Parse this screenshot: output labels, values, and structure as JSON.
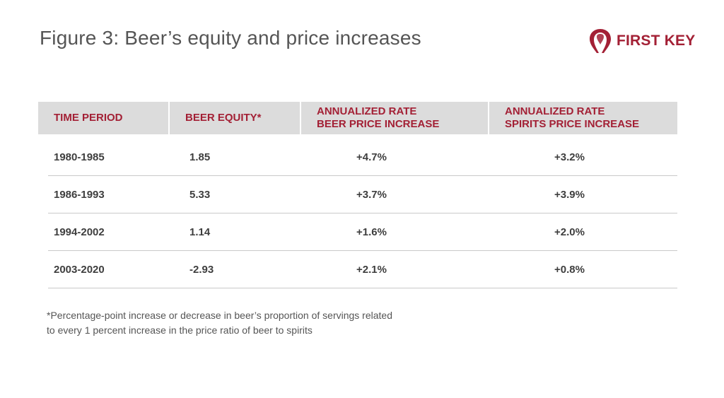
{
  "title": "Figure 3: Beer’s equity and price increases",
  "logo": {
    "text": "FIRST KEY",
    "color": "#a32035"
  },
  "table": {
    "headers": [
      "TIME PERIOD",
      "BEER EQUITY*",
      "ANNUALIZED RATE\nBEER PRICE INCREASE",
      "ANNUALIZED RATE\nSPIRITS PRICE INCREASE"
    ],
    "rows": [
      [
        "1980-1985",
        "1.85",
        "+4.7%",
        "+3.2%"
      ],
      [
        "1986-1993",
        "5.33",
        "+3.7%",
        "+3.9%"
      ],
      [
        "1994-2002",
        "1.14",
        "+1.6%",
        "+2.0%"
      ],
      [
        "2003-2020",
        "-2.93",
        "+2.1%",
        "+0.8%"
      ]
    ]
  },
  "footnote": {
    "line1": "*Percentage-point increase or decrease in beer’s proportion of servings related",
    "line2": "to every 1 percent increase in the price ratio of beer to spirits"
  },
  "colors": {
    "accent": "#a32035",
    "header_bg": "#dcdcdc",
    "text": "#3e3e3e",
    "title": "#555555"
  }
}
